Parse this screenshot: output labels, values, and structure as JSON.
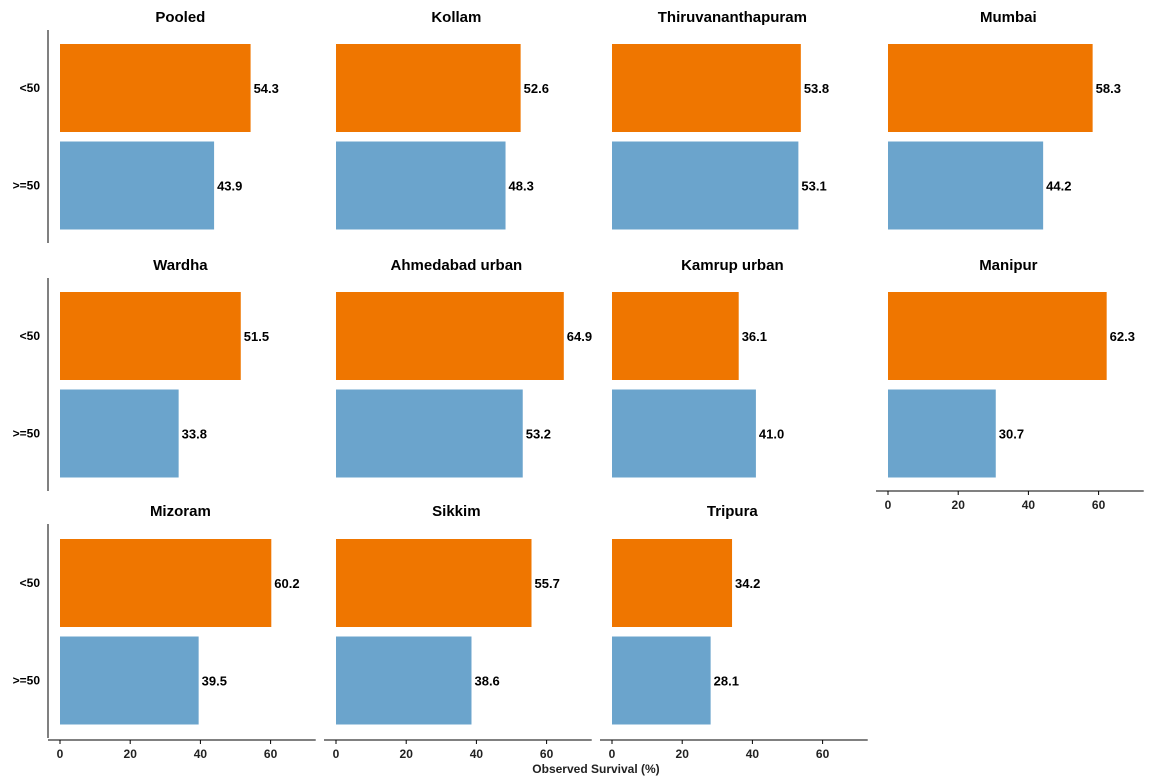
{
  "chart_data": {
    "type": "bar",
    "orientation": "horizontal",
    "xlabel": "Observed Survival (%)",
    "xlim": [
      0,
      72
    ],
    "xticks": [
      0,
      20,
      40,
      60
    ],
    "categories": [
      "<50",
      ">=50"
    ],
    "colors": {
      "<50": "#ef7600",
      ">=50": "#6ba4cc"
    },
    "panels": [
      {
        "title": "Pooled",
        "values": [
          54.3,
          43.9
        ],
        "labels": [
          "54.3",
          "43.9"
        ]
      },
      {
        "title": "Kollam",
        "values": [
          52.6,
          48.3
        ],
        "labels": [
          "52.6",
          "48.3"
        ]
      },
      {
        "title": "Thiruvananthapuram",
        "values": [
          53.8,
          53.1
        ],
        "labels": [
          "53.8",
          "53.1"
        ]
      },
      {
        "title": "Mumbai",
        "values": [
          58.3,
          44.2
        ],
        "labels": [
          "58.3",
          "44.2"
        ]
      },
      {
        "title": "Wardha",
        "values": [
          51.5,
          33.8
        ],
        "labels": [
          "51.5",
          "33.8"
        ]
      },
      {
        "title": "Ahmedabad urban",
        "values": [
          64.9,
          53.2
        ],
        "labels": [
          "64.9",
          "53.2"
        ]
      },
      {
        "title": "Kamrup urban",
        "values": [
          36.1,
          41.0
        ],
        "labels": [
          "36.1",
          "41.0"
        ]
      },
      {
        "title": "Manipur",
        "values": [
          62.3,
          30.7
        ],
        "labels": [
          "62.3",
          "30.7"
        ]
      },
      {
        "title": "Mizoram",
        "values": [
          60.2,
          39.5
        ],
        "labels": [
          "60.2",
          "39.5"
        ]
      },
      {
        "title": "Sikkim",
        "values": [
          55.7,
          38.6
        ],
        "labels": [
          "55.7",
          "38.6"
        ]
      },
      {
        "title": "Tripura",
        "values": [
          34.2,
          28.1
        ],
        "labels": [
          "34.2",
          "28.1"
        ]
      }
    ]
  }
}
